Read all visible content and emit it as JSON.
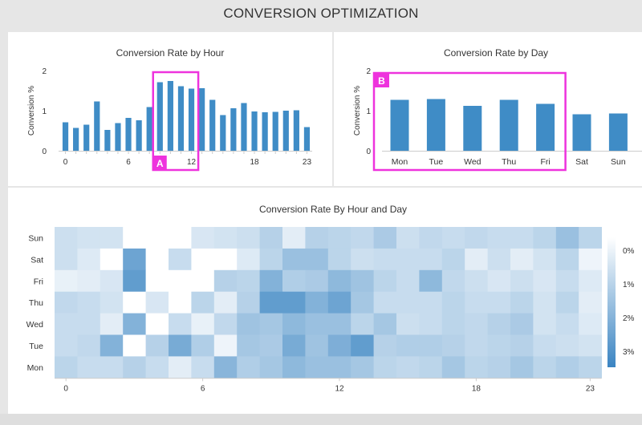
{
  "header": {
    "title": "CONVERSION OPTIMIZATION"
  },
  "colors": {
    "bar": "#3f8cc6",
    "highlight": "#ee33dd",
    "heat_low": "#ffffff",
    "heat_high": "#3a84c2",
    "axis": "#cccccc"
  },
  "chart_data": [
    {
      "id": "hour",
      "type": "bar",
      "title": "Conversion Rate by Hour",
      "ylabel": "Conversion %",
      "xlabel": "",
      "ylim": [
        0,
        2
      ],
      "yticks": [
        "0",
        "1",
        "2"
      ],
      "x": [
        0,
        1,
        2,
        3,
        4,
        5,
        6,
        7,
        8,
        9,
        10,
        11,
        12,
        13,
        14,
        15,
        16,
        17,
        18,
        19,
        20,
        21,
        22,
        23
      ],
      "xticks": [
        "0",
        "6",
        "12",
        "18",
        "23"
      ],
      "values": [
        0.71,
        0.57,
        0.65,
        1.23,
        0.52,
        0.69,
        0.82,
        0.76,
        1.09,
        1.71,
        1.74,
        1.61,
        1.55,
        1.56,
        1.27,
        0.89,
        1.06,
        1.19,
        0.98,
        0.96,
        0.97,
        1.0,
        1.01,
        0.59
      ],
      "grid": false,
      "annotation": {
        "label": "A",
        "from": 9,
        "to": 13
      }
    },
    {
      "id": "day",
      "type": "bar",
      "title": "Conversion Rate by Day",
      "ylabel": "Conversion %",
      "xlabel": "",
      "ylim": [
        0,
        2
      ],
      "yticks": [
        "0",
        "1",
        "2"
      ],
      "categories": [
        "Mon",
        "Tue",
        "Wed",
        "Thu",
        "Fri",
        "Sat",
        "Sun"
      ],
      "values": [
        1.27,
        1.29,
        1.12,
        1.27,
        1.17,
        0.91,
        0.93
      ],
      "grid": false,
      "annotation": {
        "label": "B",
        "from": "Mon",
        "to": "Fri"
      }
    },
    {
      "id": "heat",
      "type": "heatmap",
      "title": "Conversion Rate By Hour and Day",
      "xlabel": "",
      "ylabel": "",
      "x": [
        0,
        1,
        2,
        3,
        4,
        5,
        6,
        7,
        8,
        9,
        10,
        11,
        12,
        13,
        14,
        15,
        16,
        17,
        18,
        19,
        20,
        21,
        22,
        23
      ],
      "xticks": [
        "0",
        "6",
        "12",
        "18",
        "23"
      ],
      "y": [
        "Sun",
        "Sat",
        "Fri",
        "Thu",
        "Wed",
        "Tue",
        "Mon"
      ],
      "color_range": [
        0,
        3.5
      ],
      "legend_ticks": [
        "0%",
        "1%",
        "2%",
        "3%"
      ],
      "legend_placement": "right",
      "values": [
        [
          0.9,
          0.8,
          0.8,
          0.0,
          0.0,
          0.0,
          0.7,
          0.8,
          0.9,
          1.3,
          0.5,
          1.3,
          1.2,
          1.1,
          1.5,
          0.9,
          1.1,
          1.0,
          1.1,
          1.0,
          1.0,
          1.2,
          1.8,
          1.2
        ],
        [
          0.9,
          0.6,
          0.0,
          2.6,
          0.0,
          1.0,
          0.0,
          0.0,
          0.6,
          1.2,
          1.8,
          1.8,
          1.2,
          0.9,
          1.0,
          1.0,
          1.0,
          1.2,
          0.5,
          0.9,
          0.5,
          0.8,
          1.2,
          0.3
        ],
        [
          0.4,
          0.5,
          0.7,
          2.8,
          0.0,
          0.0,
          0.0,
          1.3,
          1.2,
          2.2,
          1.4,
          1.5,
          2.0,
          1.7,
          1.2,
          1.0,
          2.0,
          1.1,
          0.9,
          0.7,
          0.9,
          0.7,
          1.0,
          0.6
        ],
        [
          1.1,
          1.0,
          0.8,
          0.0,
          0.7,
          0.0,
          1.2,
          0.5,
          1.3,
          2.8,
          2.8,
          2.2,
          2.6,
          1.6,
          1.0,
          1.0,
          1.0,
          1.2,
          1.0,
          1.0,
          1.2,
          0.8,
          1.2,
          0.5
        ],
        [
          1.0,
          1.0,
          0.5,
          2.2,
          0.0,
          1.0,
          0.4,
          1.1,
          1.7,
          1.6,
          2.0,
          1.8,
          1.8,
          1.2,
          1.6,
          0.9,
          1.0,
          1.2,
          1.1,
          1.3,
          1.5,
          0.8,
          1.0,
          0.6
        ],
        [
          1.0,
          1.1,
          2.2,
          0.0,
          1.3,
          2.4,
          1.4,
          0.3,
          1.6,
          1.5,
          2.4,
          1.7,
          2.3,
          2.8,
          1.3,
          1.4,
          1.4,
          1.3,
          1.1,
          1.2,
          1.3,
          1.0,
          0.9,
          0.8
        ],
        [
          1.2,
          1.0,
          1.0,
          1.3,
          1.0,
          0.5,
          1.0,
          2.1,
          1.4,
          1.6,
          2.0,
          1.8,
          1.8,
          1.6,
          1.2,
          1.1,
          1.2,
          1.6,
          1.2,
          1.3,
          1.6,
          1.2,
          1.4,
          1.2
        ]
      ]
    }
  ]
}
